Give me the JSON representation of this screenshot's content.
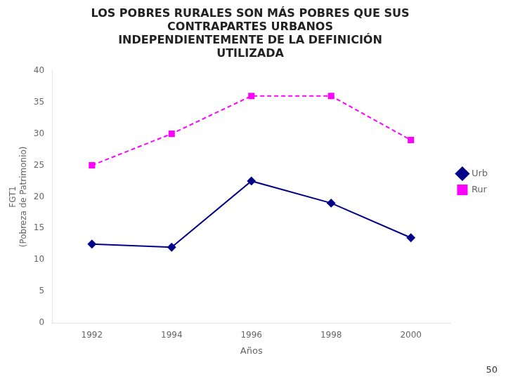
{
  "chart_data": {
    "type": "line",
    "title": "LOS POBRES RURALES SON MÁS POBRES QUE SUS\nCONTRAPARTES URBANOS\nINDEPENDIENTEMENTE DE LA DEFINICIÓN\nUTILIZADA",
    "x_label": "Años",
    "y_label": "FGT1\n(Pobreza de Patrimonio)",
    "x": [
      1992,
      1994,
      1996,
      1998,
      2000
    ],
    "series": [
      {
        "name": "Urb",
        "color": "#00008B",
        "marker": "diamond",
        "line_style": "solid",
        "values": [
          12.5,
          12.0,
          22.5,
          19.0,
          13.5
        ]
      },
      {
        "name": "Rur",
        "color": "#FF00FF",
        "marker": "square",
        "line_style": "dashed",
        "values": [
          25.0,
          30.0,
          36.0,
          36.0,
          29.0
        ]
      }
    ],
    "xlim": [
      1991,
      2001
    ],
    "xticks": [
      1992,
      1994,
      1996,
      1998,
      2000
    ],
    "ylim": [
      0,
      40
    ],
    "yticks": [
      0,
      5,
      10,
      15,
      20,
      25,
      30,
      35,
      40
    ],
    "grid": false,
    "legend": "right",
    "annotations": [
      "50"
    ]
  }
}
